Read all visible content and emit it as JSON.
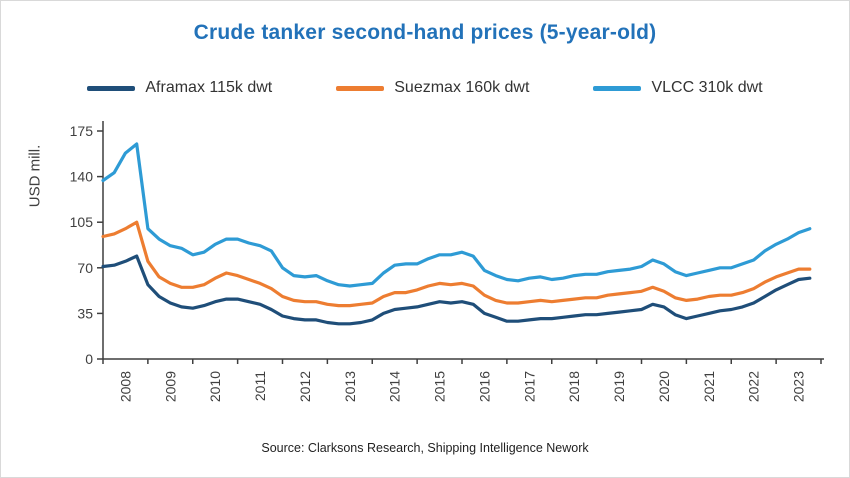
{
  "source": "Source: Clarksons Research, Shipping Intelligence Nework",
  "chart_data": {
    "type": "line",
    "title": "Crude tanker second-hand prices (5-year-old)",
    "ylabel": "USD mill.",
    "xlabel": "",
    "ylim": [
      0,
      175
    ],
    "yticks": [
      0,
      35,
      70,
      105,
      140,
      175
    ],
    "grid": false,
    "legend_position": "top",
    "x_start": 2008,
    "x_end": 2024,
    "x_tick_labels": [
      "2008",
      "2009",
      "2010",
      "2011",
      "2012",
      "2013",
      "2014",
      "2015",
      "2016",
      "2017",
      "2018",
      "2019",
      "2020",
      "2021",
      "2022",
      "2023"
    ],
    "x": [
      2008.0,
      2008.25,
      2008.5,
      2008.75,
      2009.0,
      2009.25,
      2009.5,
      2009.75,
      2010.0,
      2010.25,
      2010.5,
      2010.75,
      2011.0,
      2011.25,
      2011.5,
      2011.75,
      2012.0,
      2012.25,
      2012.5,
      2012.75,
      2013.0,
      2013.25,
      2013.5,
      2013.75,
      2014.0,
      2014.25,
      2014.5,
      2014.75,
      2015.0,
      2015.25,
      2015.5,
      2015.75,
      2016.0,
      2016.25,
      2016.5,
      2016.75,
      2017.0,
      2017.25,
      2017.5,
      2017.75,
      2018.0,
      2018.25,
      2018.5,
      2018.75,
      2019.0,
      2019.25,
      2019.5,
      2019.75,
      2020.0,
      2020.25,
      2020.5,
      2020.75,
      2021.0,
      2021.25,
      2021.5,
      2021.75,
      2022.0,
      2022.25,
      2022.5,
      2022.75,
      2023.0,
      2023.25,
      2023.5,
      2023.75
    ],
    "series": [
      {
        "name": "Aframax 115k dwt",
        "color": "#1F4E79",
        "values": [
          71,
          72,
          75,
          79,
          57,
          48,
          43,
          40,
          39,
          41,
          44,
          46,
          46,
          44,
          42,
          38,
          33,
          31,
          30,
          30,
          28,
          27,
          27,
          28,
          30,
          35,
          38,
          39,
          40,
          42,
          44,
          43,
          44,
          42,
          35,
          32,
          29,
          29,
          30,
          31,
          31,
          32,
          33,
          34,
          34,
          35,
          36,
          37,
          38,
          42,
          40,
          34,
          31,
          33,
          35,
          37,
          38,
          40,
          43,
          48,
          53,
          57,
          61,
          62
        ]
      },
      {
        "name": "Suezmax 160k dwt",
        "color": "#ED7D31",
        "values": [
          94,
          96,
          100,
          105,
          75,
          63,
          58,
          55,
          55,
          57,
          62,
          66,
          64,
          61,
          58,
          54,
          48,
          45,
          44,
          44,
          42,
          41,
          41,
          42,
          43,
          48,
          51,
          51,
          53,
          56,
          58,
          57,
          58,
          56,
          49,
          45,
          43,
          43,
          44,
          45,
          44,
          45,
          46,
          47,
          47,
          49,
          50,
          51,
          52,
          55,
          52,
          47,
          45,
          46,
          48,
          49,
          49,
          51,
          54,
          59,
          63,
          66,
          69,
          69
        ]
      },
      {
        "name": "VLCC 310k dwt",
        "color": "#2E9BD5",
        "values": [
          137,
          143,
          158,
          165,
          100,
          92,
          87,
          85,
          80,
          82,
          88,
          92,
          92,
          89,
          87,
          83,
          70,
          64,
          63,
          64,
          60,
          57,
          56,
          57,
          58,
          66,
          72,
          73,
          73,
          77,
          80,
          80,
          82,
          79,
          68,
          64,
          61,
          60,
          62,
          63,
          61,
          62,
          64,
          65,
          65,
          67,
          68,
          69,
          71,
          76,
          73,
          67,
          64,
          66,
          68,
          70,
          70,
          73,
          76,
          83,
          88,
          92,
          97,
          100
        ]
      }
    ]
  }
}
